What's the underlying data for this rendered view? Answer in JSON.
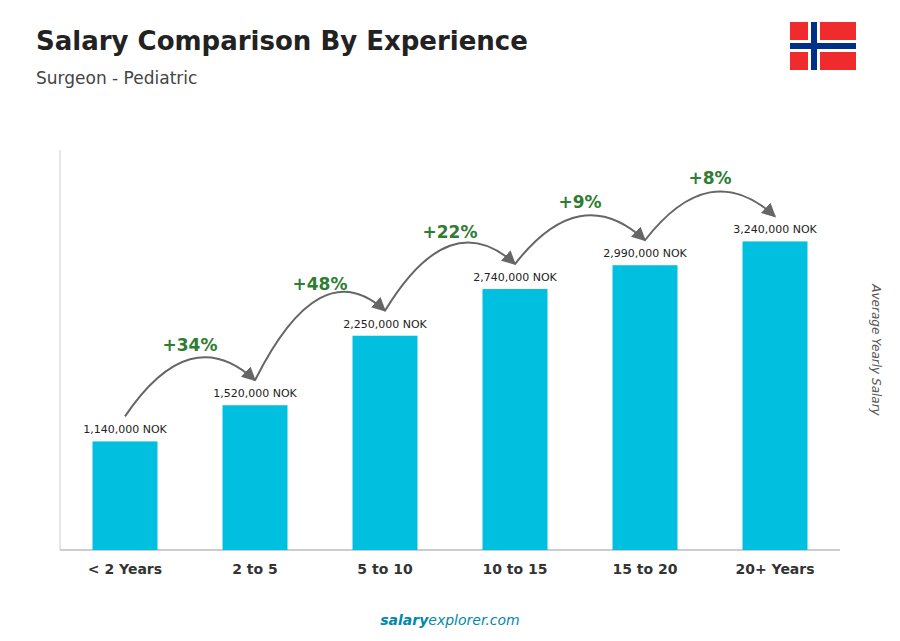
{
  "chart_data": {
    "type": "bar",
    "title": "Salary Comparison By Experience",
    "subtitle": "Surgeon - Pediatric",
    "ylabel": "Average Yearly Salary",
    "categories": [
      "< 2 Years",
      "2 to 5",
      "5 to 10",
      "10 to 15",
      "15 to 20",
      "20+ Years"
    ],
    "values": [
      1140000,
      1520000,
      2250000,
      2740000,
      2990000,
      3240000
    ],
    "value_labels": [
      "1,140,000 NOK",
      "1,520,000 NOK",
      "2,250,000 NOK",
      "2,740,000 NOK",
      "2,990,000 NOK",
      "3,240,000 NOK"
    ],
    "data_labels": true,
    "annotations": [
      "+34%",
      "+48%",
      "+22%",
      "+9%",
      "+8%"
    ],
    "footer": [
      "salary",
      "explorer.com"
    ],
    "color": "#00bfdf",
    "ylim": [
      0,
      4200000
    ],
    "yticks": [],
    "tick_labels": "x",
    "grid": false
  }
}
